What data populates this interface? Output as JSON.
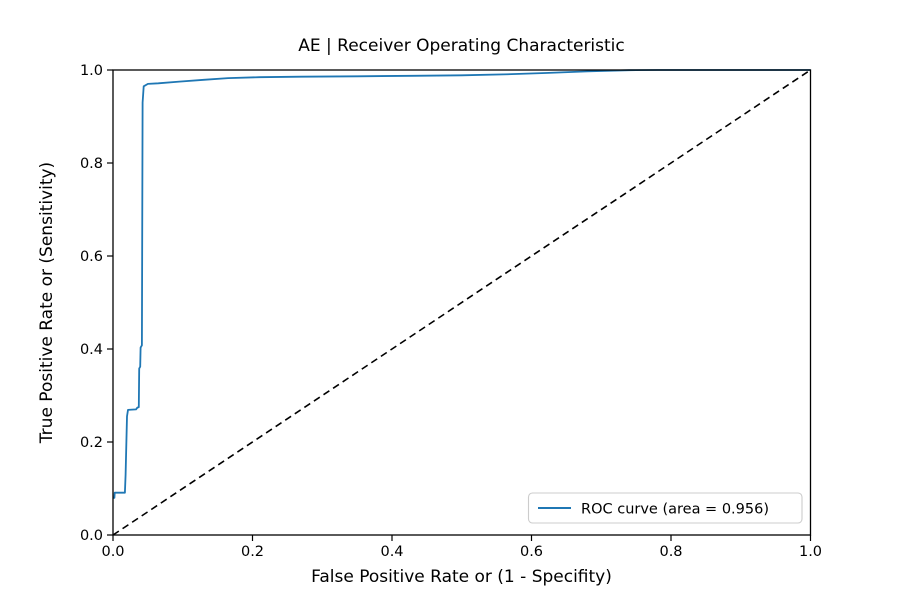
{
  "figure": {
    "background": "#ffffff"
  },
  "chart_data": {
    "type": "line",
    "title": "AE | Receiver Operating Characteristic",
    "xlabel": "False Positive Rate or (1 - Specifity)",
    "ylabel": "True Positive Rate or (Sensitivity)",
    "xlim": [
      0.0,
      1.0
    ],
    "ylim": [
      0.0,
      1.0
    ],
    "xticks": [
      "0.0",
      "0.2",
      "0.4",
      "0.6",
      "0.8",
      "1.0"
    ],
    "yticks": [
      "0.0",
      "0.2",
      "0.4",
      "0.6",
      "0.8",
      "1.0"
    ],
    "grid": false,
    "auc": 0.956,
    "legend": {
      "position": "lower right",
      "entries": [
        {
          "label": "ROC curve (area = 0.956)",
          "color": "#1f77b4",
          "style": "solid"
        }
      ]
    },
    "series": [
      {
        "name": "ROC curve",
        "color": "#1f77b4",
        "style": "solid",
        "width": 1.8,
        "points": [
          [
            0.0,
            0.08
          ],
          [
            0.002,
            0.08
          ],
          [
            0.0025,
            0.091
          ],
          [
            0.017,
            0.091
          ],
          [
            0.018,
            0.13
          ],
          [
            0.02,
            0.255
          ],
          [
            0.0215,
            0.269
          ],
          [
            0.033,
            0.27
          ],
          [
            0.035,
            0.274
          ],
          [
            0.037,
            0.275
          ],
          [
            0.0375,
            0.358
          ],
          [
            0.039,
            0.362
          ],
          [
            0.0395,
            0.403
          ],
          [
            0.0415,
            0.408
          ],
          [
            0.0425,
            0.93
          ],
          [
            0.044,
            0.965
          ],
          [
            0.05,
            0.97
          ],
          [
            0.065,
            0.9715
          ],
          [
            0.095,
            0.975
          ],
          [
            0.13,
            0.979
          ],
          [
            0.165,
            0.9825
          ],
          [
            0.21,
            0.9845
          ],
          [
            0.27,
            0.9855
          ],
          [
            0.35,
            0.9865
          ],
          [
            0.43,
            0.9875
          ],
          [
            0.5,
            0.9885
          ],
          [
            0.56,
            0.9905
          ],
          [
            0.62,
            0.9935
          ],
          [
            0.68,
            0.997
          ],
          [
            0.74,
            0.9995
          ],
          [
            0.78,
            1.0
          ],
          [
            1.0,
            1.0
          ]
        ]
      },
      {
        "name": "chance diagonal",
        "color": "#000000",
        "style": "dashed",
        "width": 1.6,
        "points": [
          [
            0.0,
            0.0
          ],
          [
            1.0,
            1.0
          ]
        ]
      }
    ]
  },
  "colors": {
    "curve": "#1f77b4",
    "diagonal": "#000000",
    "frame": "#000000",
    "tick": "#000000",
    "legend_border": "#cccccc",
    "legend_background": "#ffffff"
  }
}
